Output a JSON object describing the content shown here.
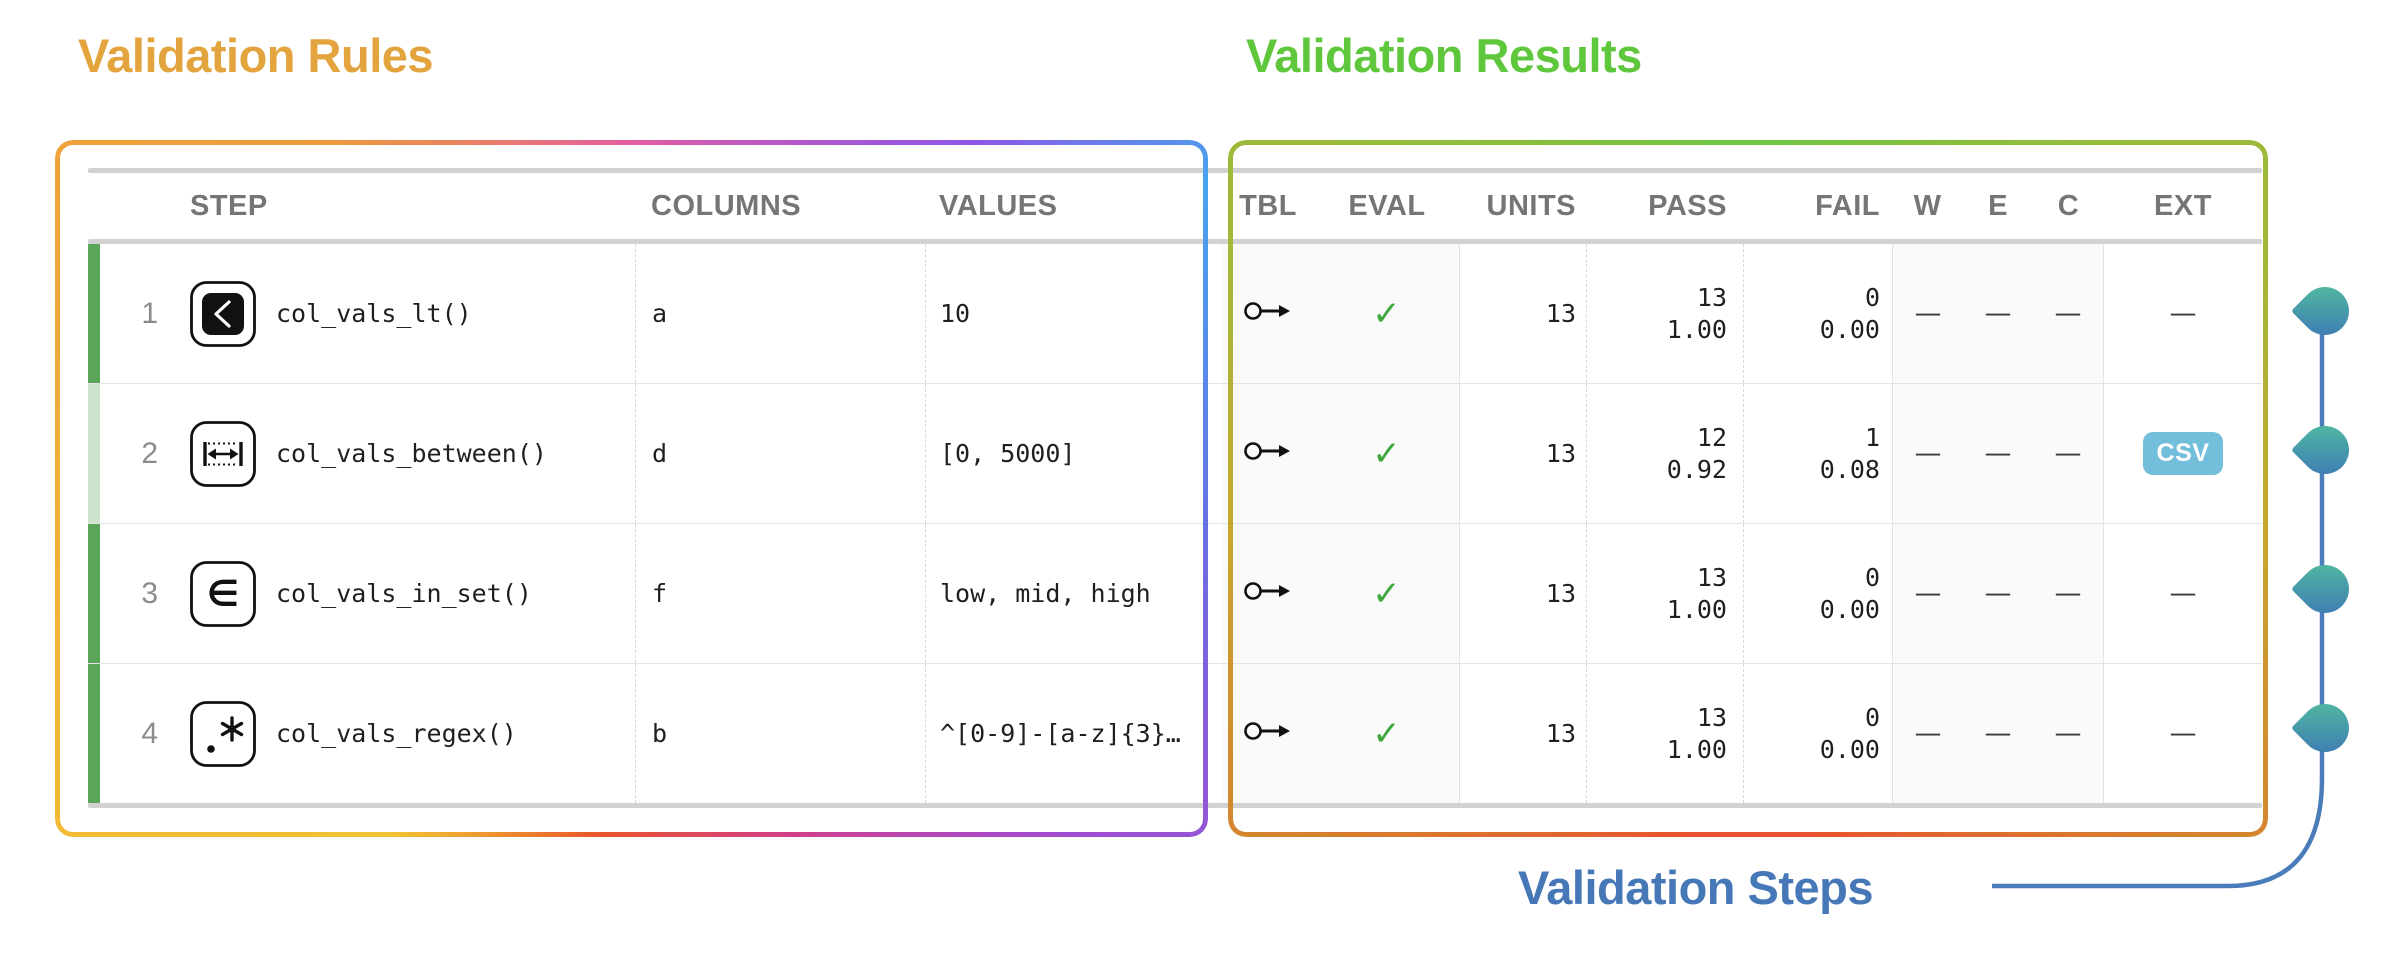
{
  "titles": {
    "rules": "Validation Rules",
    "results": "Validation Results",
    "steps": "Validation Steps"
  },
  "colors": {
    "rules_title": "#E3A43D",
    "results_title": "#5FC73C",
    "steps_title": "#4677B6",
    "rail": "#4A7CB9",
    "drop_start": "#53C19E",
    "drop_end": "#3C74B6",
    "check": "#3EA83E",
    "csv_bg": "#73BEDB",
    "bar_strong": "#5BA55B",
    "bar_light": "#CDE4CC",
    "header_text": "#757575",
    "body_text": "#1F1F1F",
    "num_text": "#8C8C8C"
  },
  "table": {
    "headers": [
      "STEP",
      "COLUMNS",
      "VALUES",
      "TBL",
      "EVAL",
      "UNITS",
      "PASS",
      "FAIL",
      "W",
      "E",
      "C",
      "EXT"
    ],
    "rows": [
      {
        "num": "1",
        "icon": "lt-icon",
        "name": "col_vals_lt()",
        "columns": "a",
        "values": "10",
        "tbl_icon": "table-arrow-icon",
        "eval": "✓",
        "units": "13",
        "pass_n": "13",
        "pass_f": "1.00",
        "fail_n": "0",
        "fail_f": "0.00",
        "w": "—",
        "e": "—",
        "c": "—",
        "ext": "—",
        "ext_type": "dash",
        "bar": "strong"
      },
      {
        "num": "2",
        "icon": "between-icon",
        "name": "col_vals_between()",
        "columns": "d",
        "values": "[0, 5000]",
        "tbl_icon": "table-arrow-icon",
        "eval": "✓",
        "units": "13",
        "pass_n": "12",
        "pass_f": "0.92",
        "fail_n": "1",
        "fail_f": "0.08",
        "w": "—",
        "e": "—",
        "c": "—",
        "ext": "CSV",
        "ext_type": "csv-button",
        "bar": "light"
      },
      {
        "num": "3",
        "icon": "in-set-icon",
        "name": "col_vals_in_set()",
        "columns": "f",
        "values": "low, mid, high",
        "tbl_icon": "table-arrow-icon",
        "eval": "✓",
        "units": "13",
        "pass_n": "13",
        "pass_f": "1.00",
        "fail_n": "0",
        "fail_f": "0.00",
        "w": "—",
        "e": "—",
        "c": "—",
        "ext": "—",
        "ext_type": "dash",
        "bar": "strong"
      },
      {
        "num": "4",
        "icon": "regex-icon",
        "name": "col_vals_regex()",
        "columns": "b",
        "values": "^[0-9]-[a-z]{3}…",
        "tbl_icon": "table-arrow-icon",
        "eval": "✓",
        "units": "13",
        "pass_n": "13",
        "pass_f": "1.00",
        "fail_n": "0",
        "fail_f": "0.00",
        "w": "—",
        "e": "—",
        "c": "—",
        "ext": "—",
        "ext_type": "dash",
        "bar": "strong"
      }
    ]
  }
}
